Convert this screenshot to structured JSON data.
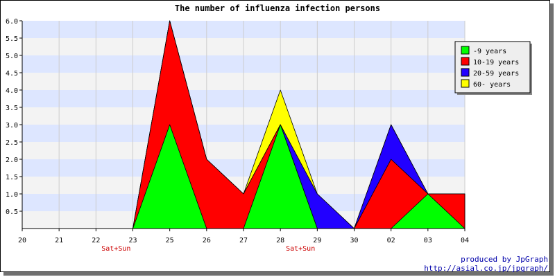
{
  "chart_data": {
    "type": "area",
    "title": "The number of influenza infection persons",
    "x_categories": [
      "20",
      "21",
      "22",
      "23",
      "25",
      "26",
      "27",
      "28",
      "29",
      "30",
      "02",
      "03",
      "04"
    ],
    "x_sublabels": [
      {
        "category": "22",
        "text": "Sat+Sun"
      },
      {
        "category": "28",
        "text": "Sat+Sun"
      }
    ],
    "ylim": [
      0,
      6.0
    ],
    "y_ticks": [
      "0.5",
      "1.0",
      "1.5",
      "2.0",
      "2.5",
      "3.0",
      "3.5",
      "4.0",
      "4.5",
      "5.0",
      "5.5",
      "6.0"
    ],
    "stacked": true,
    "grid": "horizontal bands",
    "legend_position": "right",
    "series": [
      {
        "name": "-9 years",
        "color": "#00ff00",
        "values": [
          0,
          0,
          0,
          0,
          3,
          0,
          0,
          3,
          0,
          0,
          0,
          1,
          0
        ]
      },
      {
        "name": "10-19 years",
        "color": "#ff0000",
        "values": [
          0,
          0,
          0,
          0,
          3,
          2,
          1,
          0,
          0,
          0,
          2,
          0,
          1
        ]
      },
      {
        "name": "20-59 years",
        "color": "#2200ff",
        "values": [
          0,
          0,
          0,
          0,
          0,
          0,
          0,
          0,
          1,
          0,
          1,
          0,
          0
        ]
      },
      {
        "name": "60- years",
        "color": "#ffff00",
        "values": [
          0,
          0,
          0,
          0,
          0,
          0,
          0,
          1,
          0,
          0,
          0,
          0,
          0
        ]
      }
    ],
    "colors": {
      "band_blue": "#dde6ff",
      "band_gray": "#f3f3f3",
      "sublabel": "#cc0000"
    }
  },
  "credits": {
    "line1": "produced by JpGraph",
    "line2": "http://asial.co.jp/jpgraph/"
  }
}
